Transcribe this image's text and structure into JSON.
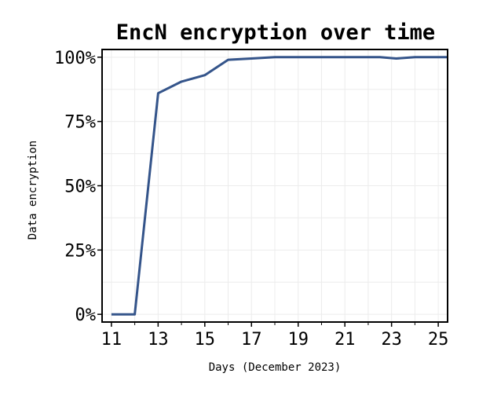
{
  "chart_data": {
    "type": "line",
    "title": "EncN encryption over time",
    "xlabel": "Days (December 2023)",
    "ylabel": "Data encryption",
    "xlim": [
      10.6,
      25.4
    ],
    "ylim": [
      -0.03,
      1.03
    ],
    "x_ticks": [
      11,
      13,
      15,
      17,
      19,
      21,
      23,
      25
    ],
    "x_tick_labels": [
      "11",
      "13",
      "15",
      "17",
      "19",
      "21",
      "23",
      "25"
    ],
    "y_ticks": [
      0,
      0.25,
      0.5,
      0.75,
      1.0
    ],
    "y_tick_labels": [
      "0%",
      "25%",
      "50%",
      "75%",
      "100%"
    ],
    "grid": true,
    "series": [
      {
        "color": "#34548a",
        "x": [
          11,
          12,
          13,
          14,
          15,
          16,
          17,
          18,
          19,
          20,
          21,
          22,
          22.5,
          23.2,
          24,
          25,
          25.4
        ],
        "y": [
          0,
          0,
          0.86,
          0.905,
          0.93,
          0.99,
          0.995,
          1.0,
          1.0,
          1.0,
          1.0,
          1.0,
          1.0,
          0.995,
          1.0,
          1.0,
          1.0
        ]
      }
    ]
  }
}
